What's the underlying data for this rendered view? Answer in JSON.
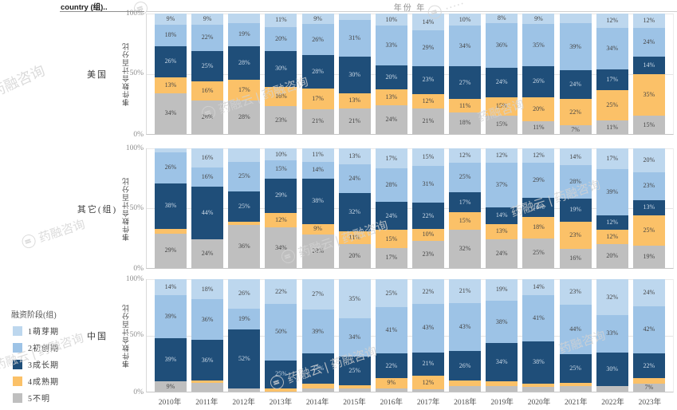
{
  "header": {
    "country_field": "country (组)..",
    "x_field": "年份 年"
  },
  "legend": {
    "title": "融资阶段(组)"
  },
  "watermark": {
    "full": "药融云 | 药融咨询",
    "short": "药融咨询"
  },
  "chart_data": {
    "type": "bar",
    "subtype": "stacked-100-percent",
    "orientation": "vertical",
    "xlabel": "年份 年",
    "ylabel": "事件数合计百分比",
    "yticks": [
      "100%",
      "50%",
      "0%"
    ],
    "ylim": [
      0,
      100
    ],
    "grid": "50% horizontal gridline per panel",
    "legend_position": "bottom-left",
    "categories": [
      "2010年",
      "2011年",
      "2012年",
      "2013年",
      "2014年",
      "2015年",
      "2016年",
      "2017年",
      "2018年",
      "2019年",
      "2020年",
      "2021年",
      "2022年",
      "2023年"
    ],
    "stages": [
      {
        "label": "1萌芽期",
        "color": "#BDD7EE"
      },
      {
        "label": "2初创期",
        "color": "#9DC3E6"
      },
      {
        "label": "3成长期",
        "color": "#1F4E79"
      },
      {
        "label": "4成熟期",
        "color": "#FBC168"
      },
      {
        "label": "5不明",
        "color": "#BFBFBF"
      }
    ],
    "label_note": "v = segment percent (top to bottom: stage1..stage5, estimated when unlabeled), t = data label shown on the bar ('' = no label shown)",
    "panels": [
      {
        "name": "美国",
        "bars": [
          {
            "v": [
              9,
              18,
              26,
              13,
              34
            ],
            "t": [
              "9%",
              "18%",
              "26%",
              "13%",
              "34%"
            ]
          },
          {
            "v": [
              9,
              22,
              25,
              16,
              28
            ],
            "t": [
              "9%",
              "22%",
              "25%",
              "16%",
              "28%"
            ]
          },
          {
            "v": [
              8,
              19,
              28,
              17,
              28
            ],
            "t": [
              "",
              "19%",
              "28%",
              "17%",
              "28%"
            ]
          },
          {
            "v": [
              11,
              20,
              30,
              16,
              23
            ],
            "t": [
              "11%",
              "20%",
              "30%",
              "16%",
              "23%"
            ]
          },
          {
            "v": [
              9,
              26,
              28,
              17,
              21
            ],
            "t": [
              "9%",
              "26%",
              "28%",
              "17%",
              "21%"
            ]
          },
          {
            "v": [
              5,
              31,
              30,
              13,
              21
            ],
            "t": [
              "",
              "31%",
              "30%",
              "13%",
              "21%"
            ]
          },
          {
            "v": [
              10,
              33,
              20,
              13,
              24
            ],
            "t": [
              "10%",
              "33%",
              "20%",
              "13%",
              "24%"
            ]
          },
          {
            "v": [
              14,
              29,
              23,
              12,
              21
            ],
            "t": [
              "14%",
              "29%",
              "23%",
              "12%",
              "21%"
            ]
          },
          {
            "v": [
              10,
              34,
              27,
              11,
              18
            ],
            "t": [
              "10%",
              "34%",
              "27%",
              "11%",
              "18%"
            ]
          },
          {
            "v": [
              8,
              36,
              24,
              15,
              15
            ],
            "t": [
              "8%",
              "36%",
              "24%",
              "15%",
              "15%"
            ]
          },
          {
            "v": [
              9,
              35,
              26,
              20,
              11
            ],
            "t": [
              "9%",
              "35%",
              "26%",
              "20%",
              "11%"
            ]
          },
          {
            "v": [
              8,
              39,
              24,
              22,
              7
            ],
            "t": [
              "",
              "39%",
              "24%",
              "22%",
              "7%"
            ]
          },
          {
            "v": [
              12,
              34,
              17,
              25,
              11
            ],
            "t": [
              "12%",
              "34%",
              "17%",
              "25%",
              "11%"
            ]
          },
          {
            "v": [
              12,
              24,
              14,
              35,
              15
            ],
            "t": [
              "12%",
              "24%",
              "14%",
              "35%",
              "15%"
            ]
          }
        ]
      },
      {
        "name": "其它(组)",
        "bars": [
          {
            "v": [
              3,
              26,
              38,
              4,
              29
            ],
            "t": [
              "",
              "26%",
              "38%",
              "",
              "29%"
            ]
          },
          {
            "v": [
              16,
              16,
              44,
              0,
              24
            ],
            "t": [
              "16%",
              "16%",
              "44%",
              "",
              "24%"
            ]
          },
          {
            "v": [
              11,
              25,
              25,
              3,
              36
            ],
            "t": [
              "",
              "25%",
              "25%",
              "",
              "36%"
            ]
          },
          {
            "v": [
              10,
              15,
              29,
              12,
              34
            ],
            "t": [
              "10%",
              "15%",
              "29%",
              "12%",
              "34%"
            ]
          },
          {
            "v": [
              11,
              14,
              38,
              9,
              28
            ],
            "t": [
              "11%",
              "14%",
              "38%",
              "9%",
              "28%"
            ]
          },
          {
            "v": [
              13,
              24,
              32,
              11,
              20
            ],
            "t": [
              "13%",
              "24%",
              "32%",
              "11%",
              "20%"
            ]
          },
          {
            "v": [
              17,
              28,
              24,
              15,
              17
            ],
            "t": [
              "17%",
              "28%",
              "24%",
              "15%",
              "17%"
            ]
          },
          {
            "v": [
              15,
              31,
              22,
              10,
              23
            ],
            "t": [
              "15%",
              "31%",
              "22%",
              "10%",
              "23%"
            ]
          },
          {
            "v": [
              12,
              25,
              17,
              15,
              32
            ],
            "t": [
              "12%",
              "25%",
              "17%",
              "15%",
              "32%"
            ]
          },
          {
            "v": [
              12,
              37,
              14,
              13,
              24
            ],
            "t": [
              "12%",
              "37%",
              "14%",
              "13%",
              "24%"
            ]
          },
          {
            "v": [
              12,
              29,
              16,
              18,
              25
            ],
            "t": [
              "12%",
              "29%",
              "16%",
              "18%",
              "25%"
            ]
          },
          {
            "v": [
              14,
              28,
              19,
              23,
              16
            ],
            "t": [
              "14%",
              "28%",
              "19%",
              "23%",
              "16%"
            ]
          },
          {
            "v": [
              17,
              39,
              12,
              12,
              20
            ],
            "t": [
              "17%",
              "39%",
              "12%",
              "12%",
              "20%"
            ]
          },
          {
            "v": [
              20,
              23,
              13,
              25,
              19
            ],
            "t": [
              "20%",
              "23%",
              "13%",
              "25%",
              "19%"
            ]
          }
        ]
      },
      {
        "name": "中国",
        "bars": [
          {
            "v": [
              14,
              39,
              39,
              0,
              9
            ],
            "t": [
              "14%",
              "39%",
              "39%",
              "",
              "9%"
            ]
          },
          {
            "v": [
              18,
              36,
              36,
              2,
              8
            ],
            "t": [
              "18%",
              "36%",
              "36%",
              "",
              ""
            ]
          },
          {
            "v": [
              26,
              19,
              52,
              0,
              3
            ],
            "t": [
              "26%",
              "19%",
              "52%",
              "",
              ""
            ]
          },
          {
            "v": [
              22,
              50,
              25,
              3,
              0
            ],
            "t": [
              "22%",
              "50%",
              "25%",
              "",
              ""
            ]
          },
          {
            "v": [
              27,
              39,
              27,
              4,
              3
            ],
            "t": [
              "27%",
              "39%",
              "27%",
              "",
              ""
            ]
          },
          {
            "v": [
              35,
              34,
              25,
              3,
              3
            ],
            "t": [
              "35%",
              "34%",
              "25%",
              "",
              ""
            ]
          },
          {
            "v": [
              25,
              41,
              22,
              9,
              3
            ],
            "t": [
              "25%",
              "41%",
              "22%",
              "9%",
              ""
            ]
          },
          {
            "v": [
              22,
              43,
              21,
              12,
              2
            ],
            "t": [
              "22%",
              "43%",
              "21%",
              "12%",
              ""
            ]
          },
          {
            "v": [
              21,
              43,
              26,
              5,
              5
            ],
            "t": [
              "21%",
              "43%",
              "26%",
              "",
              ""
            ]
          },
          {
            "v": [
              19,
              38,
              34,
              4,
              5
            ],
            "t": [
              "19%",
              "38%",
              "34%",
              "",
              ""
            ]
          },
          {
            "v": [
              14,
              41,
              38,
              3,
              4
            ],
            "t": [
              "14%",
              "41%",
              "38%",
              "",
              ""
            ]
          },
          {
            "v": [
              23,
              44,
              25,
              3,
              5
            ],
            "t": [
              "23%",
              "44%",
              "25%",
              "",
              ""
            ]
          },
          {
            "v": [
              32,
              33,
              30,
              0,
              5
            ],
            "t": [
              "32%",
              "33%",
              "30%",
              "",
              ""
            ]
          },
          {
            "v": [
              24,
              42,
              22,
              5,
              7
            ],
            "t": [
              "24%",
              "42%",
              "22%",
              "",
              "7%"
            ]
          }
        ]
      }
    ]
  }
}
